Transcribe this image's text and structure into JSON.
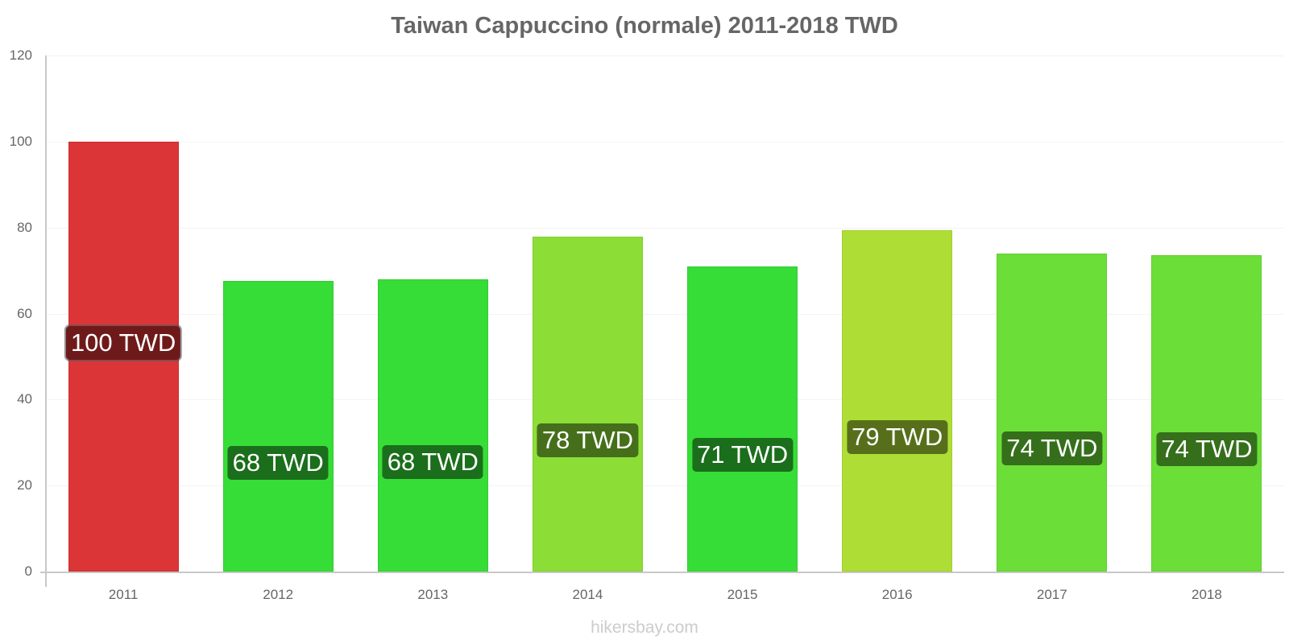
{
  "chart_data": {
    "type": "bar",
    "title": "Taiwan Cappuccino (normale) 2011-2018 TWD",
    "xlabel": "",
    "ylabel": "",
    "ylim": [
      0,
      120
    ],
    "yticks": [
      0,
      20,
      40,
      60,
      80,
      100,
      120
    ],
    "grid": true,
    "legend": "none",
    "categories": [
      "2011",
      "2012",
      "2013",
      "2014",
      "2015",
      "2016",
      "2017",
      "2018"
    ],
    "values": [
      100,
      67.5,
      67.9,
      77.8,
      71,
      79.3,
      74,
      73.6
    ],
    "data_labels": [
      "100 TWD",
      "68 TWD",
      "68 TWD",
      "78 TWD",
      "71 TWD",
      "79 TWD",
      "74 TWD",
      "74 TWD"
    ],
    "bar_colors": [
      "#dc3537",
      "#37dd37",
      "#37dd37",
      "#8cde37",
      "#37dd37",
      "#aede35",
      "#6bde37",
      "#6bde37"
    ],
    "label_bg_colors": [
      "#6e1a1b",
      "#1b6e1b",
      "#1b6e1b",
      "#466f1b",
      "#1b6e1b",
      "#576f1a",
      "#356f1b",
      "#356f1b"
    ],
    "watermark": "hikersbay.com"
  }
}
